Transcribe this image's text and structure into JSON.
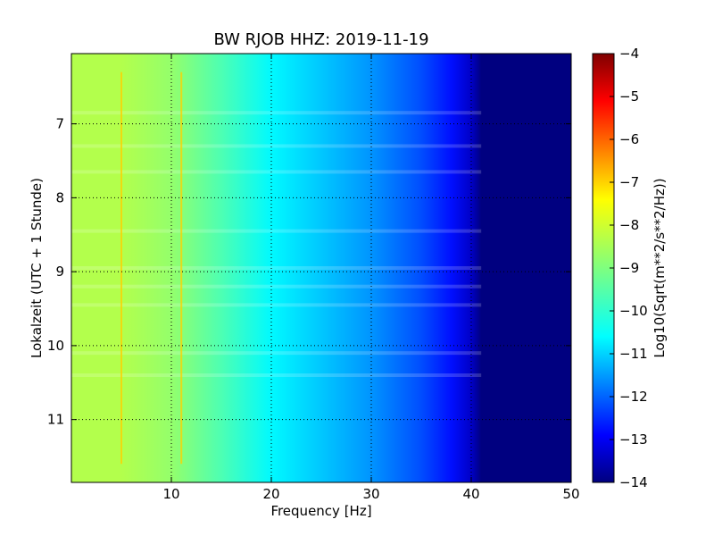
{
  "chart_data": {
    "type": "heatmap",
    "title": "BW RJOB HHZ: 2019-11-19",
    "xlabel": "Frequency [Hz]",
    "ylabel": "Lokalzeit (UTC + 1 Stunde)",
    "colorbar_label": "Log10(Sqrt(m**2/s**2/Hz))",
    "xlim": [
      0,
      50
    ],
    "ylim": [
      6.05,
      11.85
    ],
    "y_inverted": true,
    "x_ticks": [
      10,
      20,
      30,
      40,
      50
    ],
    "y_ticks": [
      7,
      8,
      9,
      10,
      11
    ],
    "clim": [
      -14,
      -4
    ],
    "colorbar_ticks": [
      -4,
      -5,
      -6,
      -7,
      -8,
      -9,
      -10,
      -11,
      -12,
      -13,
      -14
    ],
    "colormap": "jet",
    "grid": true,
    "z_profile": {
      "frequency_hz": [
        0,
        5,
        10,
        15,
        20,
        25,
        30,
        35,
        38,
        40,
        41,
        50
      ],
      "log10_psd": [
        -8.5,
        -8.5,
        -8.8,
        -9.5,
        -10.3,
        -10.8,
        -11.3,
        -12.0,
        -12.6,
        -13.3,
        -14,
        -14
      ]
    },
    "persistent_lines_hz": [
      5.0,
      11.0
    ],
    "broadband_event_times": [
      6.85,
      7.3,
      7.65,
      8.45,
      8.95,
      9.2,
      9.45,
      10.1,
      10.4
    ]
  }
}
